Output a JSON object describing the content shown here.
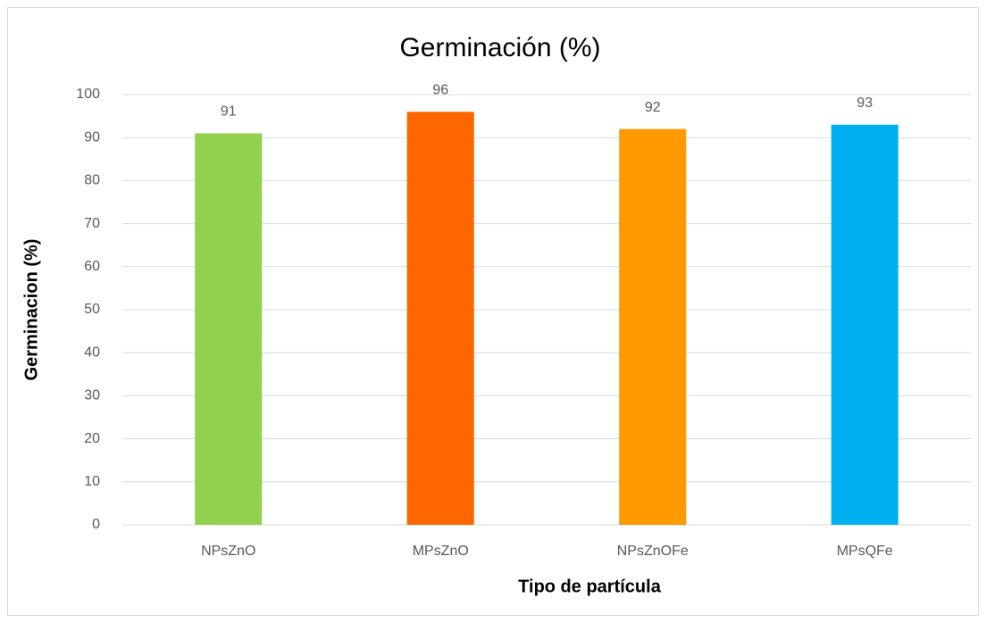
{
  "chart_data": {
    "type": "bar",
    "title": "Germinación (%)",
    "x_label": "Tipo de partícula",
    "y_label": "Germinacion (%)",
    "categories": [
      "NPsZnO",
      "MPsZnO",
      "NPsZnOFe",
      "MPsQFe"
    ],
    "values": [
      91,
      96,
      92,
      93
    ],
    "colors": [
      "#92d050",
      "#ff6600",
      "#ff9900",
      "#00b0f0"
    ],
    "ylim": [
      0,
      100
    ],
    "yticks": [
      0,
      10,
      20,
      30,
      40,
      50,
      60,
      70,
      80,
      90,
      100
    ],
    "grid": true,
    "data_labels": true
  }
}
